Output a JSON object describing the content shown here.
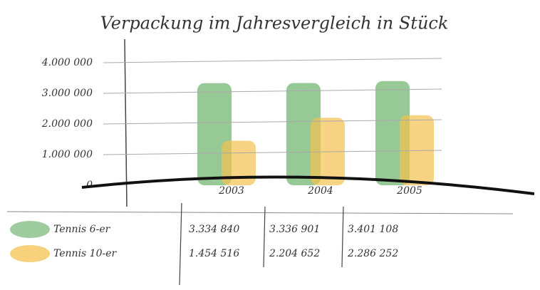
{
  "chart_data": {
    "type": "bar",
    "title": "Verpackung im Jahresvergleich in Stück",
    "categories": [
      "2003",
      "2004",
      "2005"
    ],
    "series": [
      {
        "name": "Tennis 6-er",
        "color": "#7dbb7d",
        "values": [
          3334840,
          3336901,
          3401108
        ],
        "value_labels": [
          "3.334 840",
          "3.336 901",
          "3.401 108"
        ]
      },
      {
        "name": "Tennis 10-er",
        "color": "#f4c24f",
        "values": [
          1454516,
          2204652,
          2286252
        ],
        "value_labels": [
          "1.454 516",
          "2.204 652",
          "2.286 252"
        ]
      }
    ],
    "ylim": [
      0,
      4000000
    ],
    "yticks": [
      0,
      {
        "value": 1000000,
        "label": "1.000 000"
      },
      {
        "value": 2000000,
        "label": "2.000 000"
      },
      {
        "value": 3000000,
        "label": "3.000 000"
      },
      {
        "value": 4000000,
        "label": "4.000 000"
      }
    ],
    "grid": true
  }
}
